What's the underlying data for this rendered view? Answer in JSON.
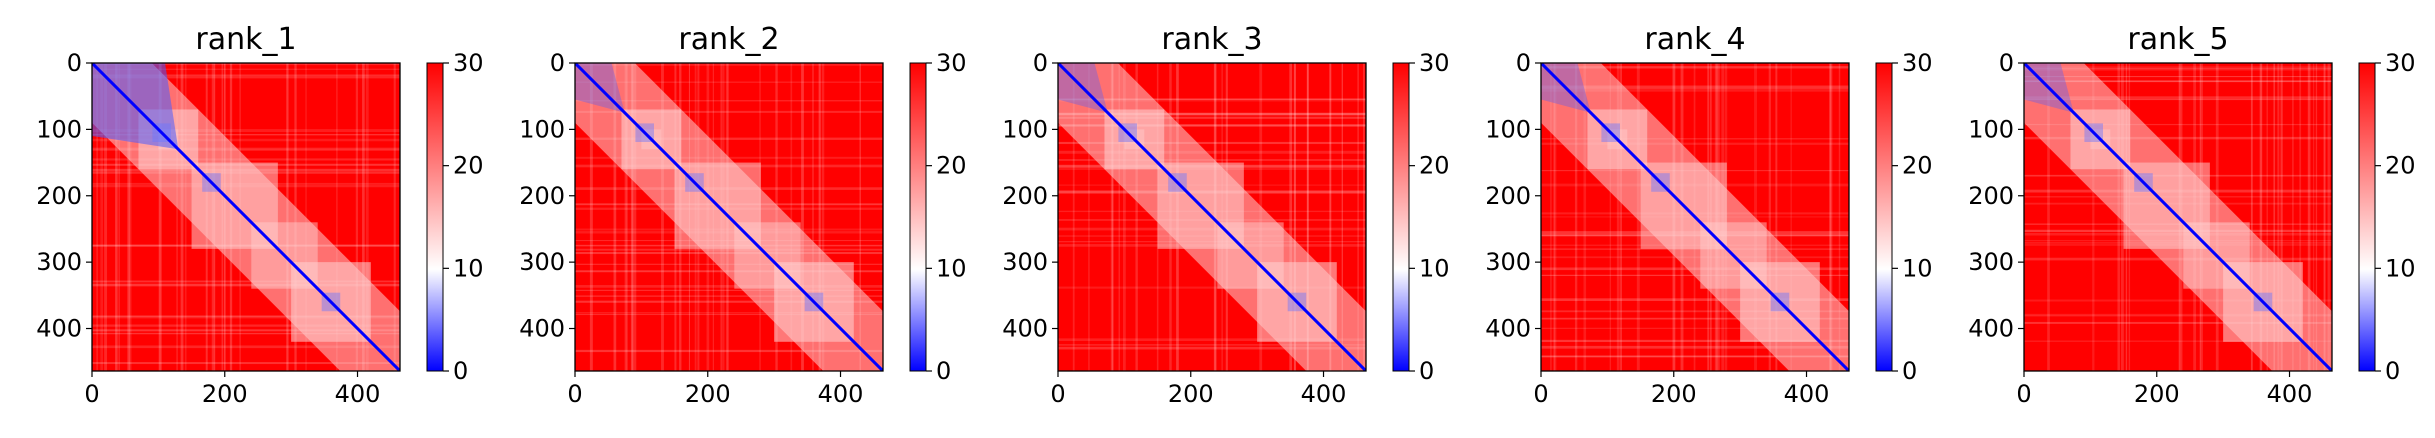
{
  "chart_data": [
    {
      "type": "heatmap",
      "title": "rank_1",
      "x_ticks": [
        "0",
        "200",
        "400"
      ],
      "y_ticks": [
        "0",
        "100",
        "200",
        "300",
        "400"
      ],
      "xlim": [
        0,
        464
      ],
      "ylim": [
        464,
        0
      ],
      "colorbar": {
        "ticks": [
          "0",
          "10",
          "20",
          "30"
        ],
        "range": [
          0,
          30
        ]
      }
    },
    {
      "type": "heatmap",
      "title": "rank_2",
      "x_ticks": [
        "0",
        "200",
        "400"
      ],
      "y_ticks": [
        "0",
        "100",
        "200",
        "300",
        "400"
      ],
      "xlim": [
        0,
        464
      ],
      "ylim": [
        464,
        0
      ],
      "colorbar": {
        "ticks": [
          "0",
          "10",
          "20",
          "30"
        ],
        "range": [
          0,
          30
        ]
      }
    },
    {
      "type": "heatmap",
      "title": "rank_3",
      "x_ticks": [
        "0",
        "200",
        "400"
      ],
      "y_ticks": [
        "0",
        "100",
        "200",
        "300",
        "400"
      ],
      "xlim": [
        0,
        464
      ],
      "ylim": [
        464,
        0
      ],
      "colorbar": {
        "ticks": [
          "0",
          "10",
          "20",
          "30"
        ],
        "range": [
          0,
          30
        ]
      }
    },
    {
      "type": "heatmap",
      "title": "rank_4",
      "x_ticks": [
        "0",
        "200",
        "400"
      ],
      "y_ticks": [
        "0",
        "100",
        "200",
        "300",
        "400"
      ],
      "xlim": [
        0,
        464
      ],
      "ylim": [
        464,
        0
      ],
      "colorbar": {
        "ticks": [
          "0",
          "10",
          "20",
          "30"
        ],
        "range": [
          0,
          30
        ]
      }
    },
    {
      "type": "heatmap",
      "title": "rank_5",
      "x_ticks": [
        "0",
        "200",
        "400"
      ],
      "y_ticks": [
        "0",
        "100",
        "200",
        "300",
        "400"
      ],
      "xlim": [
        0,
        464
      ],
      "ylim": [
        464,
        0
      ],
      "colorbar": {
        "ticks": [
          "0",
          "10",
          "20",
          "30"
        ],
        "range": [
          0,
          30
        ]
      }
    }
  ],
  "colormap": {
    "low": "#0000ff",
    "mid": "#ffffff",
    "high": "#ff0000"
  }
}
